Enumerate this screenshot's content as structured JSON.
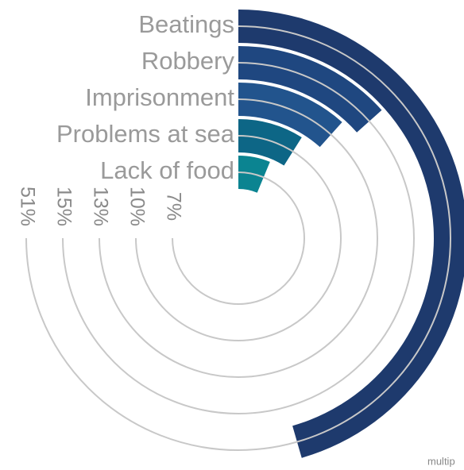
{
  "chart_data": {
    "type": "radial-bar",
    "categories": [
      "Beatings",
      "Robbery",
      "Imprisonment",
      "Problems at sea",
      "Lack of food"
    ],
    "values": [
      51,
      15,
      13,
      10,
      7
    ],
    "value_labels": [
      "51%",
      "15%",
      "13%",
      "10%",
      "7%"
    ],
    "colors": [
      "#1e3a6d",
      "#1f4780",
      "#22548d",
      "#0d6686",
      "#0b8491"
    ],
    "rlim": [
      0,
      112
    ],
    "note": "multip"
  }
}
